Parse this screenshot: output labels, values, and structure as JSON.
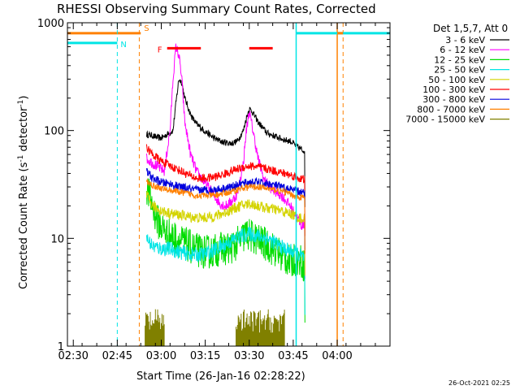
{
  "chart_data": {
    "type": "line",
    "title": "RHESSI Observing Summary Count Rates, Corrected",
    "xlabel": "Start Time (26-Jan-16 02:28:22)",
    "ylabel": "Corrected Count Rate (s",
    "ylabel_sup1": "-1",
    "ylabel_mid": " detector",
    "ylabel_sup2": "-1",
    "ylabel_end": ")",
    "yscale": "log",
    "xlim_minutes": [
      28,
      138
    ],
    "ylim": [
      1,
      1000
    ],
    "x_ticks": [
      {
        "min": 30,
        "label": "02:30"
      },
      {
        "min": 45,
        "label": "02:45"
      },
      {
        "min": 60,
        "label": "03:00"
      },
      {
        "min": 75,
        "label": "03:15"
      },
      {
        "min": 90,
        "label": "03:30"
      },
      {
        "min": 105,
        "label": "03:45"
      },
      {
        "min": 120,
        "label": "04:00"
      }
    ],
    "y_ticks": [
      {
        "v": 1,
        "label": "1"
      },
      {
        "v": 10,
        "label": "10"
      },
      {
        "v": 100,
        "label": "100"
      },
      {
        "v": 1000,
        "label": "1000"
      }
    ],
    "legend_title": "Det 1,5,7, Att 0",
    "series": [
      {
        "name": "3 - 6 keV",
        "color": "#000000",
        "points": [
          [
            55,
            92
          ],
          [
            57,
            90
          ],
          [
            58,
            87
          ],
          [
            60,
            85
          ],
          [
            62,
            92
          ],
          [
            64,
            100
          ],
          [
            65,
            180
          ],
          [
            66,
            300
          ],
          [
            67,
            280
          ],
          [
            68,
            200
          ],
          [
            70,
            140
          ],
          [
            72,
            115
          ],
          [
            75,
            98
          ],
          [
            78,
            85
          ],
          [
            81,
            78
          ],
          [
            84,
            76
          ],
          [
            86,
            80
          ],
          [
            88,
            100
          ],
          [
            89,
            130
          ],
          [
            90,
            160
          ],
          [
            91,
            150
          ],
          [
            93,
            120
          ],
          [
            96,
            95
          ],
          [
            99,
            88
          ],
          [
            102,
            82
          ],
          [
            104,
            80
          ],
          [
            106,
            72
          ],
          [
            108,
            66
          ],
          [
            109,
            65
          ]
        ]
      },
      {
        "name": "6 - 12 keV",
        "color": "#ff00ff",
        "points": [
          [
            55,
            55
          ],
          [
            57,
            50
          ],
          [
            59,
            46
          ],
          [
            61,
            42
          ],
          [
            63,
            100
          ],
          [
            64,
            300
          ],
          [
            65,
            600
          ],
          [
            66,
            500
          ],
          [
            67,
            300
          ],
          [
            68,
            120
          ],
          [
            70,
            60
          ],
          [
            72,
            42
          ],
          [
            74,
            35
          ],
          [
            76,
            30
          ],
          [
            78,
            25
          ],
          [
            80,
            21
          ],
          [
            82,
            20
          ],
          [
            84,
            22
          ],
          [
            86,
            26
          ],
          [
            88,
            50
          ],
          [
            89,
            100
          ],
          [
            90,
            150
          ],
          [
            91,
            110
          ],
          [
            93,
            55
          ],
          [
            95,
            35
          ],
          [
            98,
            28
          ],
          [
            101,
            25
          ],
          [
            104,
            20
          ],
          [
            106,
            16
          ],
          [
            108,
            13
          ],
          [
            109,
            14
          ]
        ]
      },
      {
        "name": "12 - 25 keV",
        "color": "#00dd00",
        "points": [
          [
            55,
            30
          ],
          [
            57,
            20
          ],
          [
            59,
            14
          ],
          [
            62,
            11
          ],
          [
            65,
            10
          ],
          [
            68,
            9
          ],
          [
            71,
            8
          ],
          [
            74,
            7.5
          ],
          [
            77,
            7.5
          ],
          [
            80,
            8
          ],
          [
            83,
            8
          ],
          [
            86,
            9
          ],
          [
            89,
            11
          ],
          [
            92,
            10
          ],
          [
            95,
            9
          ],
          [
            98,
            8
          ],
          [
            101,
            7
          ],
          [
            104,
            6
          ],
          [
            106,
            6.5
          ],
          [
            108,
            6
          ],
          [
            109,
            5.5
          ]
        ]
      },
      {
        "name": "25 - 50 keV",
        "color": "#00e5e5",
        "points": [
          [
            55,
            10
          ],
          [
            57,
            8.5
          ],
          [
            60,
            8
          ],
          [
            63,
            8
          ],
          [
            66,
            7.5
          ],
          [
            69,
            7.2
          ],
          [
            72,
            7
          ],
          [
            75,
            7.2
          ],
          [
            78,
            7.8
          ],
          [
            81,
            8.5
          ],
          [
            84,
            9.5
          ],
          [
            87,
            10.5
          ],
          [
            90,
            11
          ],
          [
            93,
            10.5
          ],
          [
            96,
            10
          ],
          [
            99,
            9
          ],
          [
            102,
            8
          ],
          [
            105,
            7.5
          ],
          [
            107,
            7
          ],
          [
            109,
            6.5
          ]
        ]
      },
      {
        "name": "50 - 100 keV",
        "color": "#d4d400",
        "points": [
          [
            55,
            25
          ],
          [
            57,
            20
          ],
          [
            60,
            18
          ],
          [
            63,
            17
          ],
          [
            66,
            16.5
          ],
          [
            69,
            16
          ],
          [
            72,
            15.5
          ],
          [
            75,
            15.5
          ],
          [
            78,
            16
          ],
          [
            81,
            17
          ],
          [
            84,
            18.5
          ],
          [
            87,
            20
          ],
          [
            90,
            21
          ],
          [
            93,
            20
          ],
          [
            96,
            19
          ],
          [
            99,
            18.5
          ],
          [
            102,
            17.5
          ],
          [
            105,
            16.5
          ],
          [
            107,
            15.5
          ],
          [
            109,
            15
          ]
        ]
      },
      {
        "name": "100 - 300 keV",
        "color": "#ff0000",
        "points": [
          [
            55,
            70
          ],
          [
            57,
            60
          ],
          [
            60,
            52
          ],
          [
            63,
            47
          ],
          [
            66,
            43
          ],
          [
            69,
            39
          ],
          [
            72,
            36
          ],
          [
            75,
            36
          ],
          [
            78,
            37
          ],
          [
            81,
            39
          ],
          [
            84,
            42
          ],
          [
            87,
            45
          ],
          [
            90,
            47
          ],
          [
            93,
            46
          ],
          [
            96,
            44
          ],
          [
            99,
            42
          ],
          [
            102,
            40
          ],
          [
            105,
            38
          ],
          [
            107,
            36
          ],
          [
            109,
            35
          ]
        ]
      },
      {
        "name": "300 - 800 keV",
        "color": "#0000dd",
        "points": [
          [
            55,
            42
          ],
          [
            57,
            36
          ],
          [
            60,
            33
          ],
          [
            63,
            32
          ],
          [
            66,
            30
          ],
          [
            69,
            29
          ],
          [
            72,
            28
          ],
          [
            75,
            28
          ],
          [
            78,
            28
          ],
          [
            81,
            29
          ],
          [
            84,
            30
          ],
          [
            87,
            32
          ],
          [
            90,
            33
          ],
          [
            93,
            33
          ],
          [
            96,
            32
          ],
          [
            99,
            31
          ],
          [
            102,
            29
          ],
          [
            105,
            28
          ],
          [
            107,
            27
          ],
          [
            109,
            26
          ]
        ]
      },
      {
        "name": "800 - 7000 keV",
        "color": "#ff8000",
        "points": [
          [
            55,
            34
          ],
          [
            57,
            31
          ],
          [
            60,
            29
          ],
          [
            63,
            28
          ],
          [
            66,
            27
          ],
          [
            69,
            26
          ],
          [
            72,
            25
          ],
          [
            75,
            25
          ],
          [
            78,
            25
          ],
          [
            81,
            26
          ],
          [
            84,
            27
          ],
          [
            87,
            29
          ],
          [
            90,
            30
          ],
          [
            93,
            30
          ],
          [
            96,
            29
          ],
          [
            99,
            28
          ],
          [
            102,
            27
          ],
          [
            105,
            25
          ],
          [
            107,
            24
          ],
          [
            109,
            24
          ]
        ]
      },
      {
        "name": "7000 - 15000 keV",
        "color": "#808000",
        "bursts": [
          [
            54.5,
            61
          ],
          [
            85.5,
            102
          ]
        ],
        "base": 1,
        "peak": 2.2
      }
    ],
    "states": [
      {
        "label": "S",
        "color": "#ff8000",
        "level": 800,
        "ranges": [
          [
            28,
            53
          ]
        ]
      },
      {
        "label": "N",
        "color": "#00e5e5",
        "level": 650,
        "ranges": [
          [
            28,
            45
          ]
        ]
      },
      {
        "label": "F",
        "color": "#ff0000",
        "level": 580,
        "ranges": [
          [
            62,
            73.5
          ],
          [
            90,
            98
          ]
        ]
      }
    ],
    "vlines_dashed": [
      {
        "min": 45,
        "color": "#00e5e5"
      },
      {
        "min": 52.5,
        "color": "#ff8000"
      },
      {
        "min": 122,
        "color": "#ff8000"
      }
    ],
    "vlines_solid": [
      {
        "min": 106,
        "color": "#00e5e5"
      },
      {
        "min": 120,
        "color": "#ff8000"
      }
    ],
    "right_markers": [
      {
        "min": 106,
        "level": 800,
        "color": "#00e5e5",
        "to": 138
      },
      {
        "min": 120,
        "level": 800,
        "color": "#ff8000",
        "to": 122
      }
    ]
  },
  "footer_timestamp": "26-Oct-2021 02:25"
}
